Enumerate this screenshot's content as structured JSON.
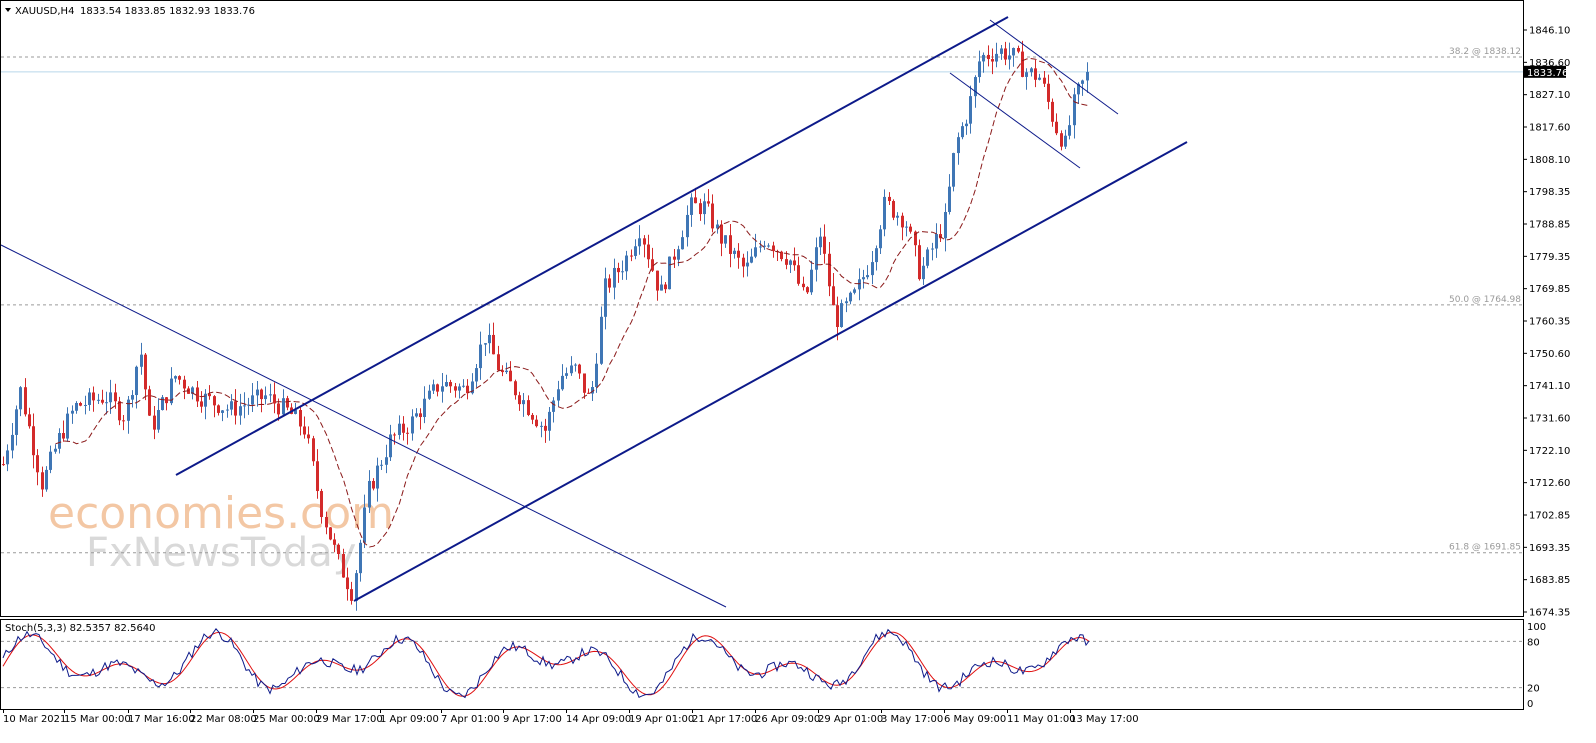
{
  "header": {
    "symbol": "XAUUSD,H4",
    "ohlc": "1833.54 1833.85 1832.93 1833.76"
  },
  "price_axis": {
    "labels": [
      "1846.10",
      "1836.60",
      "1827.10",
      "1817.60",
      "1808.10",
      "1798.35",
      "1788.85",
      "1779.35",
      "1769.85",
      "1760.35",
      "1750.60",
      "1741.10",
      "1731.60",
      "1722.10",
      "1712.60",
      "1702.85",
      "1693.35",
      "1683.85",
      "1674.35"
    ],
    "current_price": "1833.76"
  },
  "fib_levels": [
    {
      "label": "38.2 @ 1838.12",
      "price": 1838.12
    },
    {
      "label": "50.0 @ 1764.98",
      "price": 1764.98
    },
    {
      "label": "61.8 @ 1691.85",
      "price": 1691.85
    }
  ],
  "time_axis": {
    "labels": [
      "10 Mar 2021",
      "15 Mar 00:00",
      "17 Mar 16:00",
      "22 Mar 08:00",
      "25 Mar 00:00",
      "29 Mar 17:00",
      "1 Apr 09:00",
      "7 Apr 01:00",
      "9 Apr 17:00",
      "14 Apr 09:00",
      "19 Apr 01:00",
      "21 Apr 17:00",
      "26 Apr 09:00",
      "29 Apr 01:00",
      "3 May 17:00",
      "6 May 09:00",
      "11 May 01:00",
      "13 May 17:00"
    ]
  },
  "stoch": {
    "label": "Stoch(5,3,3) 82.5357 82.5640",
    "levels": [
      "100",
      "80",
      "20",
      "0"
    ]
  },
  "watermark": {
    "line1": "economies.com",
    "line2": "FxNewsToday"
  },
  "colors": {
    "bull": "#3f76b5",
    "bear": "#d32a2a",
    "channel": "#0d1a8a",
    "ma": "#8b1a1a",
    "stoch_main": "#0d1a8a",
    "stoch_signal": "#e01010",
    "current_line": "#b9d7ea"
  },
  "chart_data": {
    "type": "candlestick",
    "symbol": "XAUUSD",
    "timeframe": "H4",
    "ylim": [
      1674.35,
      1850
    ],
    "key_closes": [
      {
        "time": "10 Mar 2021",
        "close": 1718
      },
      {
        "time": "17 Mar 16:00",
        "close": 1745
      },
      {
        "time": "29 Mar 17:00",
        "close": 1681
      },
      {
        "time": "1 Apr 09:00",
        "close": 1728
      },
      {
        "time": "21 Apr 17:00",
        "close": 1790
      },
      {
        "time": "29 Apr 01:00",
        "close": 1765
      },
      {
        "time": "6 May 09:00",
        "close": 1840
      },
      {
        "time": "13 May 17:00",
        "close": 1833.76
      }
    ]
  }
}
